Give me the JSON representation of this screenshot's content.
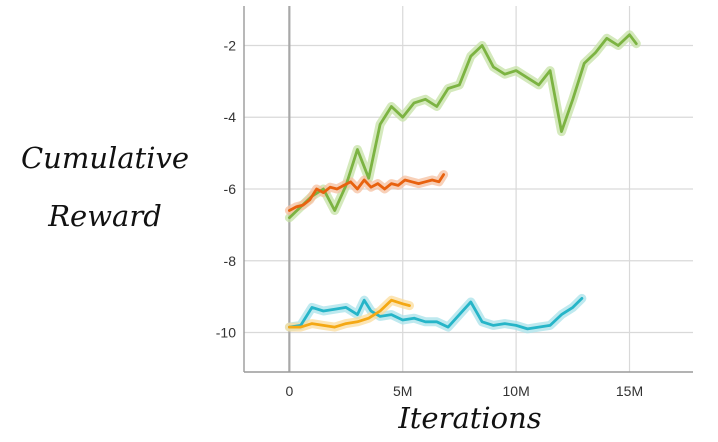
{
  "chart_data": {
    "type": "line",
    "title": "",
    "xlabel": "Iterations",
    "ylabel_lines": [
      "Cumulative",
      "Reward"
    ],
    "xlim": [
      -2000000,
      17800000
    ],
    "ylim": [
      -11.1,
      -0.9
    ],
    "x_ticks": [
      {
        "value": 0,
        "label": "0"
      },
      {
        "value": 5000000,
        "label": "5M"
      },
      {
        "value": 10000000,
        "label": "10M"
      },
      {
        "value": 15000000,
        "label": "15M"
      }
    ],
    "y_ticks": [
      {
        "value": -2,
        "label": "-2"
      },
      {
        "value": -4,
        "label": "-4"
      },
      {
        "value": -6,
        "label": "-6"
      },
      {
        "value": -8,
        "label": "-8"
      },
      {
        "value": -10,
        "label": "-10"
      }
    ],
    "grid": true,
    "legend": "none",
    "series": [
      {
        "color": "#7cb342",
        "band_color": "#c5e1a5",
        "x": [
          0,
          500000,
          1000000,
          1500000,
          2000000,
          2500000,
          3000000,
          3500000,
          4000000,
          4500000,
          5000000,
          5500000,
          6000000,
          6500000,
          7000000,
          7500000,
          8000000,
          8500000,
          9000000,
          9500000,
          10000000,
          10500000,
          11000000,
          11500000,
          12000000,
          12500000,
          13000000,
          13500000,
          14000000,
          14500000,
          15000000,
          15300000
        ],
        "values": [
          -6.8,
          -6.5,
          -6.2,
          -6.0,
          -6.6,
          -5.9,
          -4.9,
          -5.7,
          -4.2,
          -3.7,
          -4.0,
          -3.6,
          -3.5,
          -3.7,
          -3.2,
          -3.1,
          -2.3,
          -2.0,
          -2.6,
          -2.8,
          -2.7,
          -2.9,
          -3.1,
          -2.7,
          -4.4,
          -3.5,
          -2.5,
          -2.2,
          -1.8,
          -2.0,
          -1.7,
          -1.95
        ]
      },
      {
        "color": "#e8620f",
        "band_color": "#f5c0a0",
        "x": [
          0,
          300000,
          600000,
          900000,
          1200000,
          1500000,
          1800000,
          2100000,
          2400000,
          2700000,
          3000000,
          3300000,
          3600000,
          3900000,
          4200000,
          4500000,
          4800000,
          5100000,
          5400000,
          5700000,
          6000000,
          6300000,
          6600000,
          6800000
        ],
        "values": [
          -6.6,
          -6.5,
          -6.45,
          -6.3,
          -6.0,
          -6.1,
          -5.95,
          -6.0,
          -5.9,
          -5.8,
          -6.0,
          -5.75,
          -5.95,
          -5.85,
          -6.0,
          -5.85,
          -5.9,
          -5.75,
          -5.8,
          -5.85,
          -5.8,
          -5.75,
          -5.8,
          -5.6
        ]
      },
      {
        "color": "#26b5c8",
        "band_color": "#a8e2ea",
        "x": [
          0,
          500000,
          1000000,
          1500000,
          2000000,
          2500000,
          3000000,
          3300000,
          3600000,
          4000000,
          4500000,
          5000000,
          5500000,
          6000000,
          6500000,
          7000000,
          7500000,
          8000000,
          8500000,
          9000000,
          9500000,
          10000000,
          10500000,
          11000000,
          11500000,
          12000000,
          12500000,
          12900000
        ],
        "values": [
          -9.85,
          -9.8,
          -9.3,
          -9.4,
          -9.35,
          -9.3,
          -9.5,
          -9.1,
          -9.4,
          -9.55,
          -9.5,
          -9.65,
          -9.6,
          -9.7,
          -9.7,
          -9.85,
          -9.5,
          -9.15,
          -9.7,
          -9.8,
          -9.75,
          -9.8,
          -9.9,
          -9.85,
          -9.8,
          -9.5,
          -9.3,
          -9.05
        ]
      },
      {
        "color": "#f4a814",
        "band_color": "#fbdc9c",
        "x": [
          0,
          500000,
          1000000,
          1500000,
          2000000,
          2500000,
          3000000,
          3500000,
          4000000,
          4500000,
          5000000,
          5300000
        ],
        "values": [
          -9.85,
          -9.85,
          -9.75,
          -9.8,
          -9.85,
          -9.75,
          -9.7,
          -9.6,
          -9.4,
          -9.1,
          -9.2,
          -9.25
        ]
      }
    ]
  }
}
